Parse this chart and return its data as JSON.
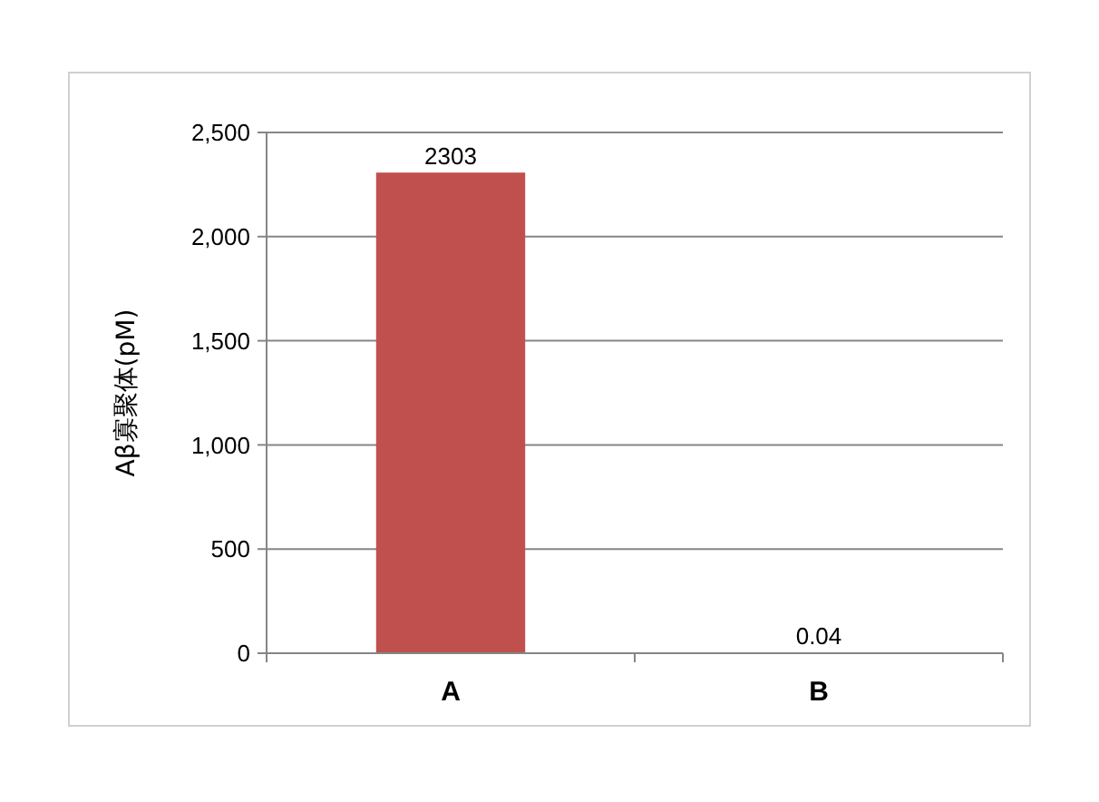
{
  "chart_data": {
    "type": "bar",
    "ylabel": "Aβ寡聚体(pM)",
    "categories": [
      "A",
      "B"
    ],
    "values": [
      2303,
      0.04
    ],
    "color": "#c0504d",
    "ylim": [
      0,
      2500
    ],
    "yticks": [
      0,
      500,
      {
        "value": 1000,
        "label": "1,000"
      },
      {
        "value": 1500,
        "label": "1,500"
      },
      {
        "value": 2000,
        "label": "2,000"
      },
      {
        "value": 2500,
        "label": "2,500"
      }
    ],
    "grid": "y",
    "data_labels": true
  }
}
